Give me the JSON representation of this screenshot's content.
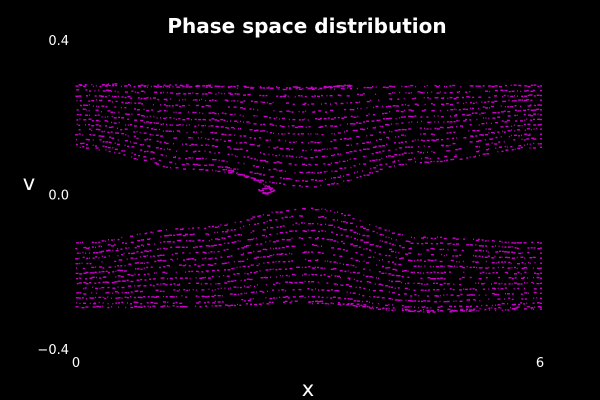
{
  "chart_data": {
    "type": "scatter",
    "title": "Phase space distribution",
    "xlabel": "x",
    "ylabel": "v",
    "xlim": [
      0,
      6
    ],
    "ylim": [
      -0.4,
      0.4
    ],
    "x_ticks": [
      {
        "value": 0,
        "label": "0"
      },
      {
        "value": 6,
        "label": "6"
      }
    ],
    "y_ticks": [
      {
        "value": 0.4,
        "label": "0.4"
      },
      {
        "value": 0.0,
        "label": "0.0"
      },
      {
        "value": -0.4,
        "label": "−0.4"
      }
    ],
    "grid": false,
    "legend": "none",
    "background_color": "#000000",
    "marker_color": "#cc00cc",
    "series": [
      {
        "points": [
          {
            "row": "upper",
            "x": 0.0,
            "v": 0.283
          },
          {
            "row": "upper",
            "x": 0.0,
            "v": 0.271
          },
          {
            "row": "upper",
            "x": 0.0,
            "v": 0.258
          },
          {
            "row": "upper",
            "x": 0.0,
            "v": 0.246
          },
          {
            "row": "upper",
            "x": 0.0,
            "v": 0.233
          },
          {
            "row": "upper",
            "x": 0.0,
            "v": 0.221
          },
          {
            "row": "upper",
            "x": 0.0,
            "v": 0.208
          },
          {
            "row": "upper",
            "x": 0.0,
            "v": 0.196
          },
          {
            "row": "upper",
            "x": 0.0,
            "v": 0.183
          },
          {
            "row": "upper",
            "x": 0.0,
            "v": 0.171
          },
          {
            "row": "upper",
            "x": 0.0,
            "v": 0.158
          },
          {
            "row": "upper",
            "x": 0.0,
            "v": 0.146
          },
          {
            "row": "upper",
            "x": 0.0,
            "v": 0.133
          },
          {
            "row": "upper",
            "x": 0.0,
            "v": 0.124
          },
          {
            "row": "upper",
            "x": 1.5,
            "v": 0.281
          },
          {
            "row": "upper",
            "x": 1.5,
            "v": 0.264
          },
          {
            "row": "upper",
            "x": 1.5,
            "v": 0.247
          },
          {
            "row": "upper",
            "x": 1.5,
            "v": 0.231
          },
          {
            "row": "upper",
            "x": 1.5,
            "v": 0.214
          },
          {
            "row": "upper",
            "x": 1.5,
            "v": 0.197
          },
          {
            "row": "upper",
            "x": 1.5,
            "v": 0.18
          },
          {
            "row": "upper",
            "x": 1.5,
            "v": 0.163
          },
          {
            "row": "upper",
            "x": 1.5,
            "v": 0.147
          },
          {
            "row": "upper",
            "x": 1.5,
            "v": 0.13
          },
          {
            "row": "upper",
            "x": 1.5,
            "v": 0.113
          },
          {
            "row": "upper",
            "x": 1.5,
            "v": 0.096
          },
          {
            "row": "upper",
            "x": 1.5,
            "v": 0.08
          },
          {
            "row": "upper",
            "x": 1.5,
            "v": 0.068
          },
          {
            "row": "upper",
            "x": 3.0,
            "v": 0.275
          },
          {
            "row": "upper",
            "x": 3.0,
            "v": 0.256
          },
          {
            "row": "upper",
            "x": 3.0,
            "v": 0.236
          },
          {
            "row": "upper",
            "x": 3.0,
            "v": 0.216
          },
          {
            "row": "upper",
            "x": 3.0,
            "v": 0.196
          },
          {
            "row": "upper",
            "x": 3.0,
            "v": 0.177
          },
          {
            "row": "upper",
            "x": 3.0,
            "v": 0.157
          },
          {
            "row": "upper",
            "x": 3.0,
            "v": 0.137
          },
          {
            "row": "upper",
            "x": 3.0,
            "v": 0.117
          },
          {
            "row": "upper",
            "x": 3.0,
            "v": 0.098
          },
          {
            "row": "upper",
            "x": 3.0,
            "v": 0.078
          },
          {
            "row": "upper",
            "x": 3.0,
            "v": 0.058
          },
          {
            "row": "upper",
            "x": 3.0,
            "v": 0.038
          },
          {
            "row": "upper",
            "x": 3.0,
            "v": 0.022
          },
          {
            "row": "upper",
            "x": 4.5,
            "v": 0.282
          },
          {
            "row": "upper",
            "x": 4.5,
            "v": 0.266
          },
          {
            "row": "upper",
            "x": 4.5,
            "v": 0.251
          },
          {
            "row": "upper",
            "x": 4.5,
            "v": 0.235
          },
          {
            "row": "upper",
            "x": 4.5,
            "v": 0.22
          },
          {
            "row": "upper",
            "x": 4.5,
            "v": 0.204
          },
          {
            "row": "upper",
            "x": 4.5,
            "v": 0.189
          },
          {
            "row": "upper",
            "x": 4.5,
            "v": 0.173
          },
          {
            "row": "upper",
            "x": 4.5,
            "v": 0.158
          },
          {
            "row": "upper",
            "x": 4.5,
            "v": 0.142
          },
          {
            "row": "upper",
            "x": 4.5,
            "v": 0.127
          },
          {
            "row": "upper",
            "x": 4.5,
            "v": 0.111
          },
          {
            "row": "upper",
            "x": 4.5,
            "v": 0.096
          },
          {
            "row": "upper",
            "x": 4.5,
            "v": 0.086
          },
          {
            "row": "upper",
            "x": 6.0,
            "v": 0.283
          },
          {
            "row": "upper",
            "x": 6.0,
            "v": 0.271
          },
          {
            "row": "upper",
            "x": 6.0,
            "v": 0.258
          },
          {
            "row": "upper",
            "x": 6.0,
            "v": 0.246
          },
          {
            "row": "upper",
            "x": 6.0,
            "v": 0.233
          },
          {
            "row": "upper",
            "x": 6.0,
            "v": 0.221
          },
          {
            "row": "upper",
            "x": 6.0,
            "v": 0.208
          },
          {
            "row": "upper",
            "x": 6.0,
            "v": 0.196
          },
          {
            "row": "upper",
            "x": 6.0,
            "v": 0.183
          },
          {
            "row": "upper",
            "x": 6.0,
            "v": 0.171
          },
          {
            "row": "upper",
            "x": 6.0,
            "v": 0.158
          },
          {
            "row": "upper",
            "x": 6.0,
            "v": 0.146
          },
          {
            "row": "upper",
            "x": 6.0,
            "v": 0.133
          },
          {
            "row": "upper",
            "x": 6.0,
            "v": 0.124
          },
          {
            "row": "lower",
            "x": 0.0,
            "v": -0.124
          },
          {
            "row": "lower",
            "x": 0.0,
            "v": -0.137
          },
          {
            "row": "lower",
            "x": 0.0,
            "v": -0.15
          },
          {
            "row": "lower",
            "x": 0.0,
            "v": -0.163
          },
          {
            "row": "lower",
            "x": 0.0,
            "v": -0.176
          },
          {
            "row": "lower",
            "x": 0.0,
            "v": -0.189
          },
          {
            "row": "lower",
            "x": 0.0,
            "v": -0.202
          },
          {
            "row": "lower",
            "x": 0.0,
            "v": -0.215
          },
          {
            "row": "lower",
            "x": 0.0,
            "v": -0.228
          },
          {
            "row": "lower",
            "x": 0.0,
            "v": -0.241
          },
          {
            "row": "lower",
            "x": 0.0,
            "v": -0.254
          },
          {
            "row": "lower",
            "x": 0.0,
            "v": -0.267
          },
          {
            "row": "lower",
            "x": 0.0,
            "v": -0.28
          },
          {
            "row": "lower",
            "x": 0.0,
            "v": -0.29
          },
          {
            "row": "lower",
            "x": 1.5,
            "v": -0.086
          },
          {
            "row": "lower",
            "x": 1.5,
            "v": -0.102
          },
          {
            "row": "lower",
            "x": 1.5,
            "v": -0.118
          },
          {
            "row": "lower",
            "x": 1.5,
            "v": -0.134
          },
          {
            "row": "lower",
            "x": 1.5,
            "v": -0.15
          },
          {
            "row": "lower",
            "x": 1.5,
            "v": -0.166
          },
          {
            "row": "lower",
            "x": 1.5,
            "v": -0.182
          },
          {
            "row": "lower",
            "x": 1.5,
            "v": -0.198
          },
          {
            "row": "lower",
            "x": 1.5,
            "v": -0.214
          },
          {
            "row": "lower",
            "x": 1.5,
            "v": -0.23
          },
          {
            "row": "lower",
            "x": 1.5,
            "v": -0.246
          },
          {
            "row": "lower",
            "x": 1.5,
            "v": -0.262
          },
          {
            "row": "lower",
            "x": 1.5,
            "v": -0.278
          },
          {
            "row": "lower",
            "x": 1.5,
            "v": -0.288
          },
          {
            "row": "lower",
            "x": 3.0,
            "v": -0.035
          },
          {
            "row": "lower",
            "x": 3.0,
            "v": -0.054
          },
          {
            "row": "lower",
            "x": 3.0,
            "v": -0.073
          },
          {
            "row": "lower",
            "x": 3.0,
            "v": -0.092
          },
          {
            "row": "lower",
            "x": 3.0,
            "v": -0.111
          },
          {
            "row": "lower",
            "x": 3.0,
            "v": -0.13
          },
          {
            "row": "lower",
            "x": 3.0,
            "v": -0.149
          },
          {
            "row": "lower",
            "x": 3.0,
            "v": -0.168
          },
          {
            "row": "lower",
            "x": 3.0,
            "v": -0.187
          },
          {
            "row": "lower",
            "x": 3.0,
            "v": -0.206
          },
          {
            "row": "lower",
            "x": 3.0,
            "v": -0.225
          },
          {
            "row": "lower",
            "x": 3.0,
            "v": -0.244
          },
          {
            "row": "lower",
            "x": 3.0,
            "v": -0.263
          },
          {
            "row": "lower",
            "x": 3.0,
            "v": -0.276
          },
          {
            "row": "lower",
            "x": 4.5,
            "v": -0.11
          },
          {
            "row": "lower",
            "x": 4.5,
            "v": -0.125
          },
          {
            "row": "lower",
            "x": 4.5,
            "v": -0.14
          },
          {
            "row": "lower",
            "x": 4.5,
            "v": -0.155
          },
          {
            "row": "lower",
            "x": 4.5,
            "v": -0.17
          },
          {
            "row": "lower",
            "x": 4.5,
            "v": -0.185
          },
          {
            "row": "lower",
            "x": 4.5,
            "v": -0.2
          },
          {
            "row": "lower",
            "x": 4.5,
            "v": -0.215
          },
          {
            "row": "lower",
            "x": 4.5,
            "v": -0.23
          },
          {
            "row": "lower",
            "x": 4.5,
            "v": -0.245
          },
          {
            "row": "lower",
            "x": 4.5,
            "v": -0.26
          },
          {
            "row": "lower",
            "x": 4.5,
            "v": -0.275
          },
          {
            "row": "lower",
            "x": 4.5,
            "v": -0.29
          },
          {
            "row": "lower",
            "x": 4.5,
            "v": -0.298
          },
          {
            "row": "lower",
            "x": 6.0,
            "v": -0.124
          },
          {
            "row": "lower",
            "x": 6.0,
            "v": -0.137
          },
          {
            "row": "lower",
            "x": 6.0,
            "v": -0.15
          },
          {
            "row": "lower",
            "x": 6.0,
            "v": -0.163
          },
          {
            "row": "lower",
            "x": 6.0,
            "v": -0.176
          },
          {
            "row": "lower",
            "x": 6.0,
            "v": -0.189
          },
          {
            "row": "lower",
            "x": 6.0,
            "v": -0.202
          },
          {
            "row": "lower",
            "x": 6.0,
            "v": -0.215
          },
          {
            "row": "lower",
            "x": 6.0,
            "v": -0.228
          },
          {
            "row": "lower",
            "x": 6.0,
            "v": -0.241
          },
          {
            "row": "lower",
            "x": 6.0,
            "v": -0.254
          },
          {
            "row": "lower",
            "x": 6.0,
            "v": -0.267
          },
          {
            "row": "lower",
            "x": 6.0,
            "v": -0.28
          },
          {
            "row": "lower",
            "x": 6.0,
            "v": -0.29
          },
          {
            "row": "upper-edge",
            "x": 0.0,
            "v": 0.288
          },
          {
            "row": "upper-edge",
            "x": 1.5,
            "v": 0.283
          },
          {
            "row": "upper-edge",
            "x": 3.0,
            "v": 0.278
          },
          {
            "row": "upper-edge",
            "x": 3.55,
            "v": 0.283
          },
          {
            "row": "lower-edge",
            "x": 3.0,
            "v": -0.279
          },
          {
            "row": "lower-edge",
            "x": 4.5,
            "v": -0.301
          },
          {
            "row": "lower-edge",
            "x": 6.0,
            "v": -0.295
          },
          {
            "row": "filament",
            "x": 1.9,
            "v": 0.068
          },
          {
            "row": "filament",
            "x": 2.1,
            "v": 0.055
          },
          {
            "row": "filament",
            "x": 2.3,
            "v": 0.04
          },
          {
            "row": "filament",
            "x": 2.45,
            "v": 0.025
          },
          {
            "row": "filament",
            "x": 2.55,
            "v": 0.01
          },
          {
            "row": "filament",
            "x": 2.45,
            "v": 0.003
          },
          {
            "row": "filament",
            "x": 2.35,
            "v": 0.012
          },
          {
            "row": "filament",
            "x": 2.5,
            "v": 0.02
          }
        ]
      }
    ]
  }
}
